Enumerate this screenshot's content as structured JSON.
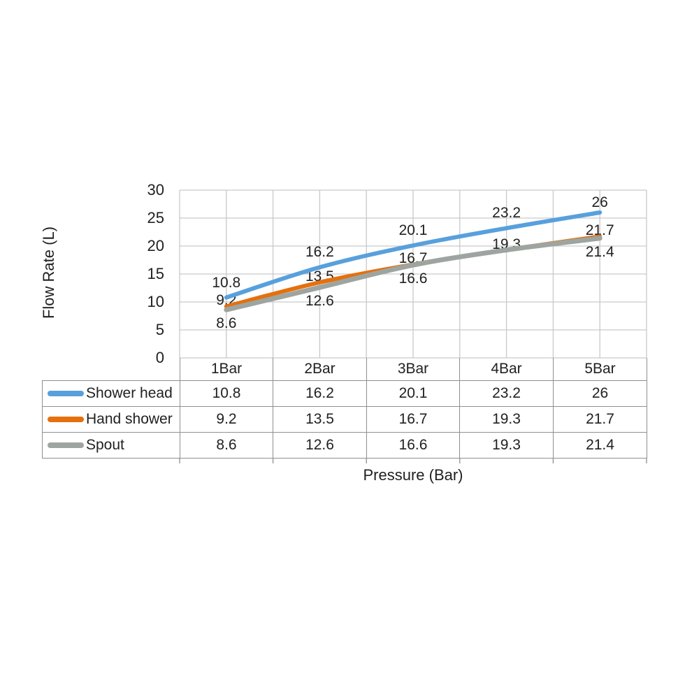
{
  "chart_data": {
    "type": "line",
    "title": "",
    "xlabel": "Pressure (Bar)",
    "ylabel": "Flow Rate (L)",
    "categories": [
      "1Bar",
      "2Bar",
      "3Bar",
      "4Bar",
      "5Bar"
    ],
    "yticks": [
      0,
      5,
      10,
      15,
      20,
      25,
      30
    ],
    "ylim": [
      0,
      30
    ],
    "grid": "major horizontal every 5 units; vertical at category boundaries and centers; plot boxed",
    "legend_position": "left column of data table below chart",
    "smooth_lines": true,
    "data_table_shown": true,
    "series": [
      {
        "name": "Shower head",
        "color": "#58A0DD",
        "values": [
          10.8,
          16.2,
          20.1,
          23.2,
          26
        ],
        "data_labels": [
          "10.8",
          "16.2",
          "20.1",
          "23.2",
          "26"
        ],
        "label_side": "above"
      },
      {
        "name": "Hand shower",
        "color": "#E4700E",
        "values": [
          9.2,
          13.5,
          16.7,
          19.3,
          21.7
        ],
        "data_labels": [
          "9.2",
          "13.5",
          "16.7",
          "19.3",
          "21.7"
        ],
        "label_side": "above"
      },
      {
        "name": "Spout",
        "color": "#9EA5A1",
        "values": [
          8.6,
          12.6,
          16.6,
          19.3,
          21.4
        ],
        "data_labels": [
          "8.6",
          "12.6",
          "16.6",
          null,
          "21.4"
        ],
        "label_side": "below"
      }
    ]
  },
  "colors": {
    "background": "#ffffff",
    "gridline": "#c9c9c9",
    "table_border": "#8f8f8f",
    "text": "#212121"
  }
}
